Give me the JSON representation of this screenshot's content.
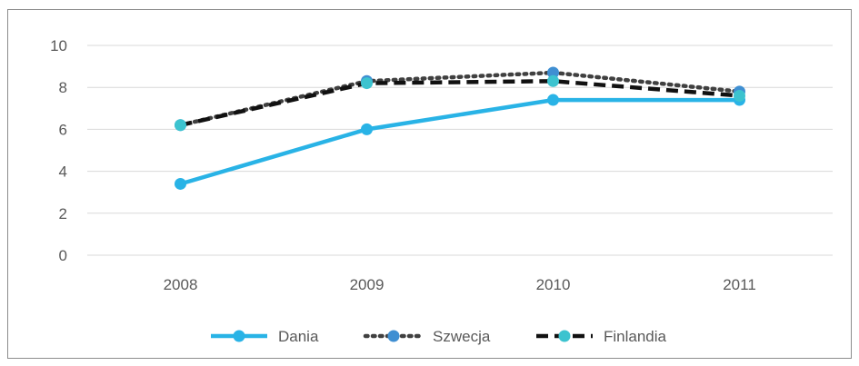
{
  "chart_data": {
    "type": "line",
    "title": "",
    "xlabel": "",
    "ylabel": "",
    "categories": [
      "2008",
      "2009",
      "2010",
      "2011"
    ],
    "ylim": [
      0,
      10
    ],
    "yticks": [
      "0",
      "2",
      "4",
      "6",
      "8",
      "10"
    ],
    "grid": true,
    "legend_position": "bottom",
    "series": [
      {
        "name": "Dania",
        "values": [
          3.4,
          6.0,
          7.4,
          7.4
        ],
        "color": "#29b3e6",
        "line_style": "solid",
        "marker_color": "#29b3e6"
      },
      {
        "name": "Szwecja",
        "values": [
          6.2,
          8.3,
          8.7,
          7.8
        ],
        "color": "#404040",
        "line_style": "dotted",
        "marker_color": "#3f8fd2"
      },
      {
        "name": "Finlandia",
        "values": [
          6.2,
          8.2,
          8.3,
          7.6
        ],
        "color": "#111111",
        "line_style": "dashed",
        "marker_color": "#3cc3cf"
      }
    ]
  }
}
